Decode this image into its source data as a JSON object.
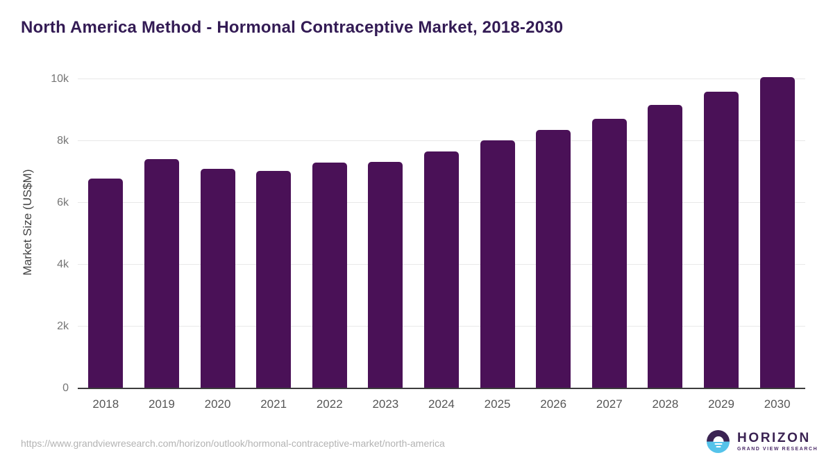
{
  "title": "North America Method - Hormonal Contraceptive Market, 2018-2030",
  "footer": {
    "source_url": "https://www.grandviewresearch.com/horizon/outlook/hormonal-contraceptive-market/north-america",
    "logo": {
      "brand": "HORIZON",
      "sub_brand": "GRAND VIEW RESEARCH"
    }
  },
  "colors": {
    "bar": "#4a1157",
    "title": "#331b54",
    "axis_line": "#3c3c3c",
    "gridline": "#e8e8e8",
    "tick_label": "#757575",
    "x_tick_label": "#565656",
    "y_axis_title": "#434343",
    "footer_url": "#b3b3b3",
    "logo_purple": "#3b2353",
    "logo_blue": "#55c3ea",
    "logo_sub": "#4b2a68"
  },
  "chart_data": {
    "type": "bar",
    "title": "North America Method - Hormonal Contraceptive Market, 2018-2030",
    "xlabel": "",
    "ylabel": "Market Size (US$M)",
    "categories": [
      "2018",
      "2019",
      "2020",
      "2021",
      "2022",
      "2023",
      "2024",
      "2025",
      "2026",
      "2027",
      "2028",
      "2029",
      "2030"
    ],
    "values": [
      6790,
      7420,
      7100,
      7030,
      7300,
      7330,
      7660,
      8020,
      8350,
      8730,
      9180,
      9600,
      10070
    ],
    "ylim": [
      0,
      10000
    ],
    "yticks": [
      {
        "label": "0",
        "value": 0
      },
      {
        "label": "2k",
        "value": 2000
      },
      {
        "label": "4k",
        "value": 4000
      },
      {
        "label": "6k",
        "value": 6000
      },
      {
        "label": "8k",
        "value": 8000
      },
      {
        "label": "10k",
        "value": 10000
      }
    ],
    "grid": true,
    "legend": false,
    "bar_color": "#4a1157"
  }
}
